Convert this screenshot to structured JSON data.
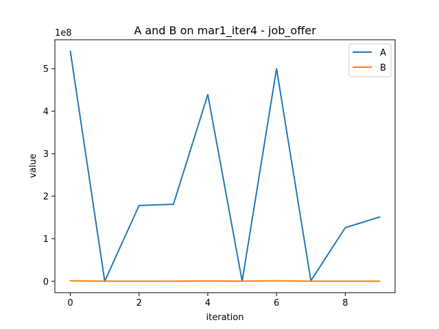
{
  "chart_data": {
    "type": "line",
    "title": "A and B on mar1_iter4 - job_offer",
    "xlabel": "iteration",
    "ylabel": "value",
    "y_offset_label": "1e8",
    "x": [
      0,
      1,
      2,
      3,
      4,
      5,
      6,
      7,
      8,
      9
    ],
    "xlim": [
      -0.45,
      9.45
    ],
    "ylim": [
      -0.27,
      5.68
    ],
    "x_ticks": [
      0,
      2,
      4,
      6,
      8
    ],
    "x_tick_labels": [
      "0",
      "2",
      "4",
      "6",
      "8"
    ],
    "y_ticks": [
      0,
      1,
      2,
      3,
      4,
      5
    ],
    "y_tick_labels": [
      "0",
      "1",
      "2",
      "3",
      "4",
      "5"
    ],
    "grid": false,
    "legend_position": "top-right",
    "series": [
      {
        "name": "A",
        "color": "#1f77b4",
        "values": [
          5.41,
          0.0,
          1.78,
          1.81,
          4.39,
          0.0,
          5.0,
          0.01,
          1.26,
          1.51
        ]
      },
      {
        "name": "B",
        "color": "#ff7f0e",
        "values": [
          0.01,
          0.0,
          0.0,
          0.0,
          0.005,
          0.0,
          0.01,
          0.0,
          0.0,
          0.0
        ]
      }
    ]
  }
}
